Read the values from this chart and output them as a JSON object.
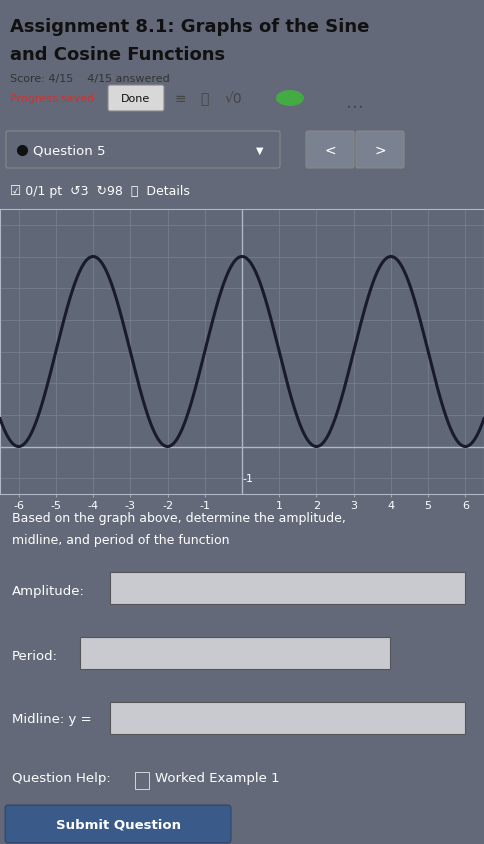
{
  "title_line1": "Assignment 8.1: Graphs of the Sine",
  "title_line2": "and Cosine Functions",
  "score_text": "Score: 4/15    4/15 answered",
  "progress_text": "Progress saved",
  "done_btn": "Done",
  "question_label": "Question 5",
  "pts_text": "☑ 0/1 pt  ↺3  ↻98  ⓘ  Details",
  "graph_xlim": [
    -6.5,
    6.5
  ],
  "graph_ylim": [
    -1.5,
    7.5
  ],
  "graph_xticks": [
    -6,
    -5,
    -4,
    -3,
    -2,
    -1,
    1,
    2,
    3,
    4,
    5,
    6
  ],
  "graph_yticks": [
    1,
    2,
    3,
    4,
    5,
    6,
    7
  ],
  "sine_amplitude": 3,
  "sine_midline": 3,
  "sine_period": 4,
  "description_line1": "Based on the graph above, determine the amplitude,",
  "description_line2": "midline, and period of the function",
  "amplitude_label": "Amplitude:",
  "period_label": "Period:",
  "midline_label": "Midline: y =",
  "help_text": "Question Help:",
  "worked_example": "Worked Example 1",
  "submit_btn": "Submit Question",
  "bg_color": "#636978",
  "graph_bg_color": "#606878",
  "header_bg": "#c8cad0",
  "curve_color": "#1a1a2e",
  "grid_color": "#7a8292",
  "axis_line_color": "#b0b8c8",
  "text_color": "#ffffff",
  "dark_text_color": "#111111",
  "mid_text_color": "#333333",
  "input_bg": "#c8cad0",
  "input_border": "#555555",
  "progress_color": "#cc3333",
  "btn_bg": "#3a5a8a",
  "btn_text": "#ffffff",
  "nav_box_bg": "#7a8292"
}
